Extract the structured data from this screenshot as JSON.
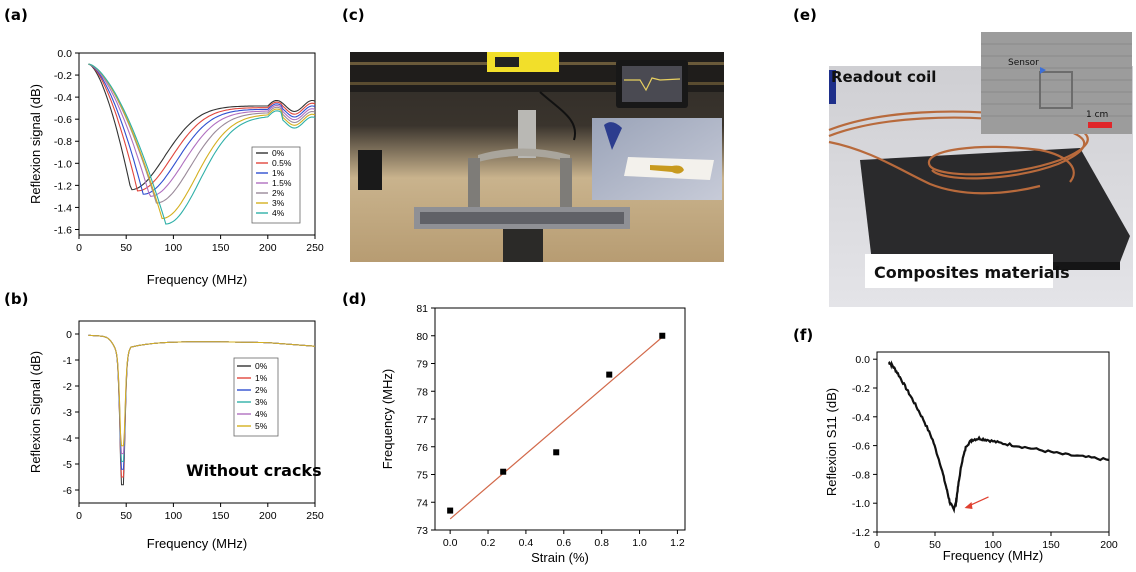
{
  "panels": {
    "a": {
      "label": "(a)"
    },
    "b": {
      "label": "(b)"
    },
    "c": {
      "label": "(c)"
    },
    "d": {
      "label": "(d)"
    },
    "e": {
      "label": "(e)"
    },
    "f": {
      "label": "(f)"
    }
  },
  "photo_c": {
    "description_free": ""
  },
  "photo_e": {
    "readout_label": "Readout coil",
    "composites_label": "Composites materials",
    "sensor_label": "Sensor",
    "scale_label": "1 cm"
  },
  "chart_data": [
    {
      "id": "a",
      "type": "line",
      "xlabel": "Frequency (MHz)",
      "ylabel": "Reflexion signal (dB)",
      "xlim": [
        0,
        250
      ],
      "ylim": [
        -1.65,
        0
      ],
      "xticks": [
        0,
        50,
        100,
        150,
        200,
        250
      ],
      "yticks": [
        0.0,
        -0.2,
        -0.4,
        -0.6,
        -0.8,
        -1.0,
        -1.2,
        -1.4,
        -1.6
      ],
      "ytick_labels": [
        "0.0",
        "-0.2",
        "-0.4",
        "-0.6",
        "-0.8",
        "-1.0",
        "-1.2",
        "-1.4",
        "-1.6"
      ],
      "legend_position": "right",
      "series": [
        {
          "name": "0%",
          "color": "#333333",
          "dip_x": 55,
          "dip_y": -1.24
        },
        {
          "name": "0.5%",
          "color": "#e0463d",
          "dip_x": 62,
          "dip_y": -1.25
        },
        {
          "name": "1%",
          "color": "#3050d0",
          "dip_x": 68,
          "dip_y": -1.28
        },
        {
          "name": "1.5%",
          "color": "#b070c0",
          "dip_x": 75,
          "dip_y": -1.3
        },
        {
          "name": "2%",
          "color": "#9a8a9a",
          "dip_x": 82,
          "dip_y": -1.36
        },
        {
          "name": "3%",
          "color": "#d4b020",
          "dip_x": 88,
          "dip_y": -1.5
        },
        {
          "name": "4%",
          "color": "#30b0a8",
          "dip_x": 92,
          "dip_y": -1.55
        }
      ]
    },
    {
      "id": "b",
      "type": "line",
      "xlabel": "Frequency (MHz)",
      "ylabel": "Reflexion Signal (dB)",
      "xlim": [
        0,
        250
      ],
      "ylim": [
        -6.5,
        0.5
      ],
      "xticks": [
        0,
        50,
        100,
        150,
        200,
        250
      ],
      "yticks": [
        0,
        -1,
        -2,
        -3,
        -4,
        -5,
        -6
      ],
      "annotation": "Without cracks",
      "legend_position": "center-right",
      "series": [
        {
          "name": "0%",
          "color": "#333333",
          "dip_y": -5.8
        },
        {
          "name": "1%",
          "color": "#e0463d",
          "dip_y": -5.5
        },
        {
          "name": "2%",
          "color": "#3050d0",
          "dip_y": -5.2
        },
        {
          "name": "3%",
          "color": "#30b0a8",
          "dip_y": -4.9
        },
        {
          "name": "4%",
          "color": "#b070c0",
          "dip_y": -4.6
        },
        {
          "name": "5%",
          "color": "#d4b020",
          "dip_y": -4.3
        }
      ],
      "dip_x": 46
    },
    {
      "id": "d",
      "type": "scatter",
      "xlabel": "Strain (%)",
      "ylabel": "Frequency (MHz)",
      "xlim": [
        -0.08,
        1.24
      ],
      "ylim": [
        73,
        81
      ],
      "xticks": [
        0.0,
        0.2,
        0.4,
        0.6,
        0.8,
        1.0,
        1.2
      ],
      "xtick_labels": [
        "0.0",
        "0.2",
        "0.4",
        "0.6",
        "0.8",
        "1.0",
        "1.2"
      ],
      "yticks": [
        73,
        74,
        75,
        76,
        77,
        78,
        79,
        80,
        81
      ],
      "points": [
        {
          "x": 0.0,
          "y": 73.7
        },
        {
          "x": 0.28,
          "y": 75.1
        },
        {
          "x": 0.56,
          "y": 75.8
        },
        {
          "x": 0.84,
          "y": 78.6
        },
        {
          "x": 1.12,
          "y": 80.0
        }
      ],
      "fit": {
        "x": [
          0.0,
          1.12
        ],
        "y": [
          73.4,
          79.95
        ],
        "color": "#d2694a"
      }
    },
    {
      "id": "f",
      "type": "line",
      "xlabel": "Frequency (MHz)",
      "ylabel": "Reflexion S11 (dB)",
      "xlim": [
        0,
        200
      ],
      "ylim": [
        -1.2,
        0.05
      ],
      "xticks": [
        0,
        50,
        100,
        150,
        200
      ],
      "yticks": [
        0.0,
        -0.2,
        -0.4,
        -0.6,
        -0.8,
        -1.0,
        -1.2
      ],
      "ytick_labels": [
        "0.0",
        "-0.2",
        "-0.4",
        "-0.6",
        "-0.8",
        "-1.0",
        "-1.2"
      ],
      "series": [
        {
          "color": "#111111",
          "x": [
            10,
            13,
            18,
            25,
            32,
            40,
            48,
            55,
            60,
            63,
            66,
            68,
            70,
            73,
            77,
            82,
            88,
            95,
            105,
            120,
            140,
            160,
            180,
            200
          ],
          "y": [
            -0.02,
            -0.04,
            -0.1,
            -0.2,
            -0.3,
            -0.42,
            -0.56,
            -0.74,
            -0.9,
            -1.0,
            -1.04,
            -1.0,
            -0.88,
            -0.72,
            -0.6,
            -0.56,
            -0.55,
            -0.56,
            -0.58,
            -0.6,
            -0.63,
            -0.66,
            -0.68,
            -0.7
          ]
        }
      ],
      "arrow_color": "#e04030"
    }
  ]
}
